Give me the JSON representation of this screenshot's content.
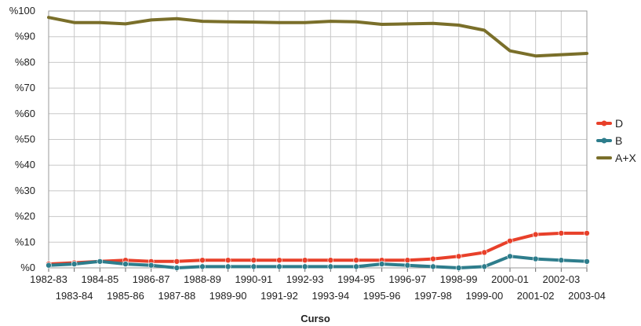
{
  "chart_data": {
    "type": "line",
    "title": "",
    "xlabel": "Curso",
    "ylabel": "",
    "ylim": [
      0,
      100
    ],
    "y_ticks": [
      "%0",
      "%10",
      "%20",
      "%30",
      "%40",
      "%50",
      "%60",
      "%70",
      "%80",
      "%90",
      "%100"
    ],
    "grid": true,
    "legend_position": "right",
    "categories": [
      "1982-83",
      "1983-84",
      "1984-85",
      "1985-86",
      "1986-87",
      "1987-88",
      "1988-89",
      "1989-90",
      "1990-91",
      "1991-92",
      "1992-93",
      "1993-94",
      "1994-95",
      "1995-96",
      "1996-97",
      "1997-98",
      "1998-99",
      "1999-00",
      "2000-01",
      "2001-02",
      "2002-03",
      "2003-04"
    ],
    "series": [
      {
        "name": "D",
        "color": "#e8402a",
        "values": [
          1.5,
          2.0,
          2.5,
          3.0,
          2.5,
          2.5,
          3.0,
          3.0,
          3.0,
          3.0,
          3.0,
          3.0,
          3.0,
          3.0,
          3.0,
          3.5,
          4.5,
          6.0,
          10.5,
          13.0,
          13.5,
          13.5
        ]
      },
      {
        "name": "B",
        "color": "#2e7d8c",
        "values": [
          1.0,
          1.5,
          2.5,
          1.5,
          1.0,
          0.0,
          0.5,
          0.5,
          0.5,
          0.5,
          0.5,
          0.5,
          0.5,
          1.5,
          1.0,
          0.5,
          0.0,
          0.5,
          4.5,
          3.5,
          3.0,
          2.5
        ]
      },
      {
        "name": "A+X",
        "color": "#7a6f2a",
        "values": [
          97.5,
          95.5,
          95.5,
          95.0,
          96.5,
          97.0,
          96.0,
          95.8,
          95.7,
          95.5,
          95.5,
          96.0,
          95.8,
          94.8,
          95.0,
          95.2,
          94.5,
          92.5,
          84.5,
          82.5,
          83.0,
          83.5
        ]
      }
    ]
  }
}
